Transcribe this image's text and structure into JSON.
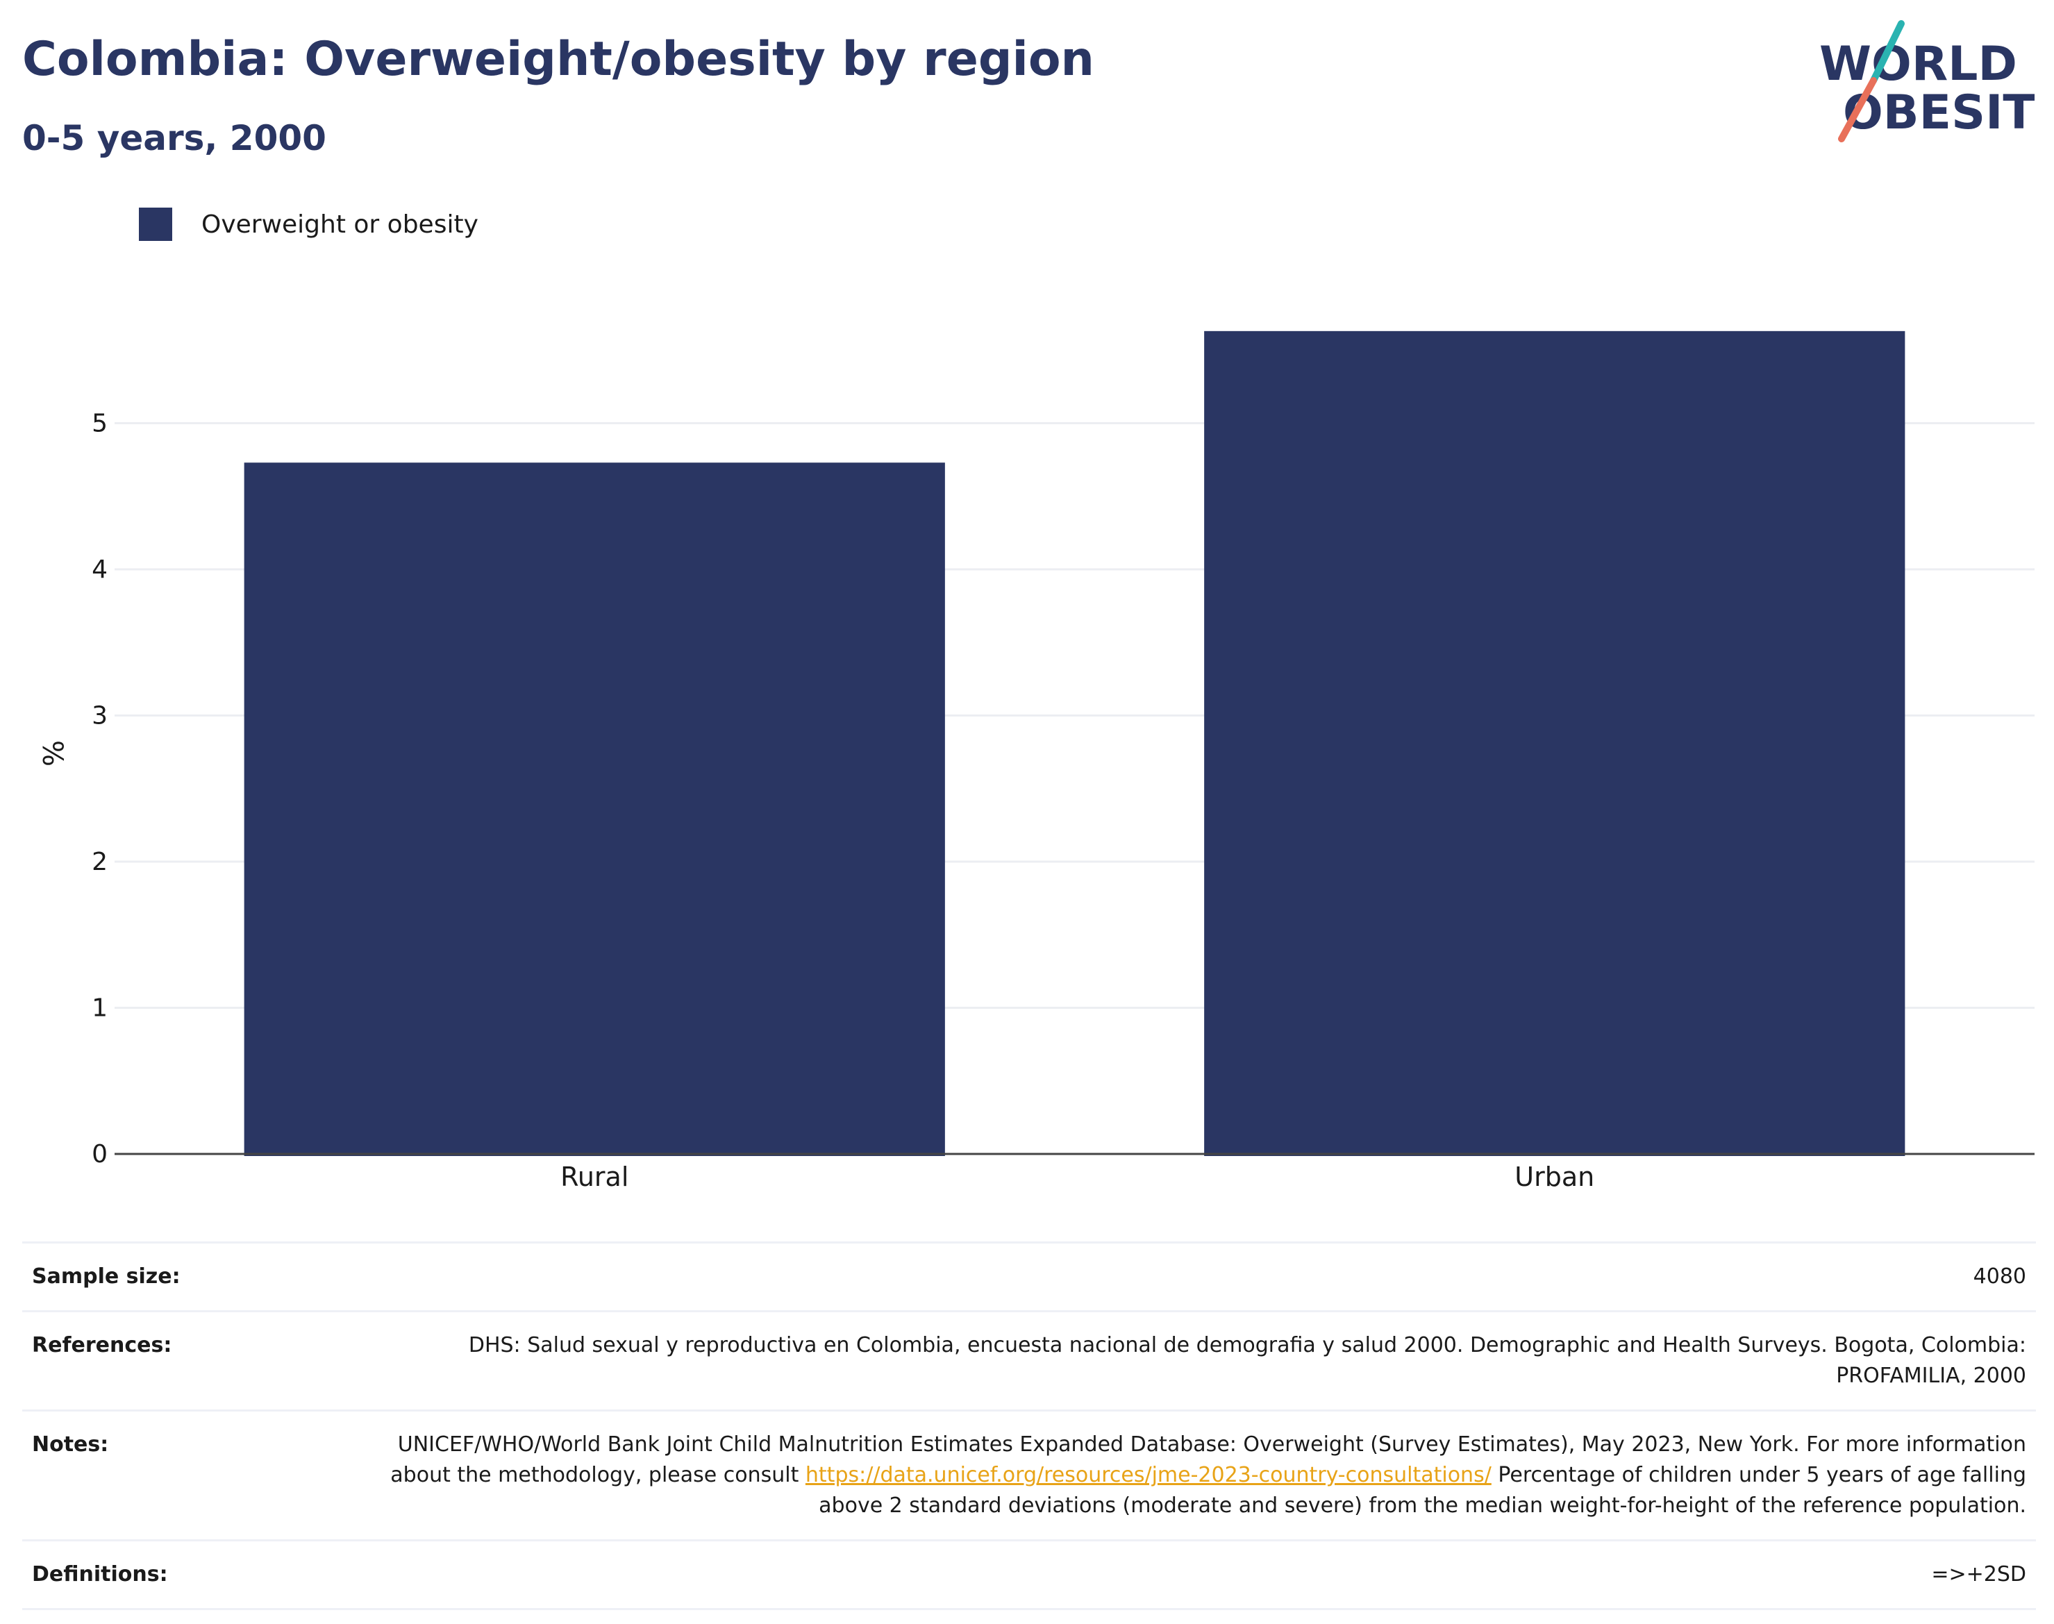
{
  "header": {
    "title": "Colombia: Overweight/obesity by region",
    "subtitle": "0-5 years, 2000"
  },
  "logo": {
    "line1": "WORLD",
    "line2": "OBESITY",
    "accent_teal": "#2ab3b1",
    "accent_coral": "#e8705a",
    "text_color": "#2a3663"
  },
  "legend": {
    "label": "Overweight or obesity",
    "color": "#2a3663"
  },
  "chart_data": {
    "type": "bar",
    "categories": [
      "Rural",
      "Urban"
    ],
    "series": [
      {
        "name": "Overweight or obesity",
        "values": [
          4.73,
          5.63
        ],
        "color": "#2a3663"
      }
    ],
    "ylabel": "%",
    "ylim": [
      0,
      5.9
    ],
    "yticks": [
      0,
      1,
      2,
      3,
      4,
      5
    ],
    "grid": true,
    "legend_position": "top-left"
  },
  "info": {
    "rows": [
      {
        "key": "Sample size:",
        "value": "4080"
      },
      {
        "key": "References:",
        "value": "DHS: Salud sexual y reproductiva en Colombia, encuesta nacional de demografia y salud 2000. Demographic and Health Surveys. Bogota, Colombia: PROFAMILIA, 2000"
      },
      {
        "key": "Notes:",
        "value_before": "UNICEF/WHO/World Bank Joint Child Malnutrition Estimates Expanded Database: Overweight (Survey Estimates), May 2023, New York. For more information about the methodology, please consult ",
        "link": "https://data.unicef.org/resources/jme-2023-country-consultations/",
        "value_after": " Percentage of children under 5 years of age falling above 2 standard deviations (moderate and severe) from the median weight-for-height of the reference population."
      },
      {
        "key": "Definitions:",
        "value": "=>+2SD"
      }
    ]
  }
}
